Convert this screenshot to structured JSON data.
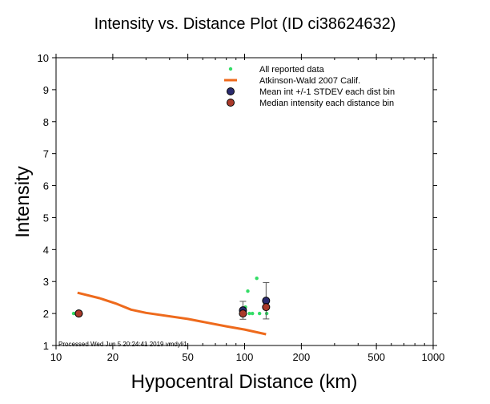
{
  "chart_data": {
    "type": "scatter",
    "title": "Intensity vs. Distance Plot (ID ci38624632)",
    "xlabel": "Hypocentral Distance (km)",
    "ylabel": "Intensity",
    "x_scale": "log",
    "xlim": [
      10,
      1000
    ],
    "ylim": [
      1,
      10
    ],
    "x_ticks": [
      10,
      20,
      50,
      100,
      200,
      500,
      1000
    ],
    "x_tick_labels": [
      "10",
      "20",
      "50",
      "100",
      "200",
      "500",
      "1000"
    ],
    "y_ticks": [
      1,
      2,
      3,
      4,
      5,
      6,
      7,
      8,
      9,
      10
    ],
    "y_tick_labels": [
      "1",
      "2",
      "3",
      "4",
      "5",
      "6",
      "7",
      "8",
      "9",
      "10"
    ],
    "grid": false,
    "legend_position": "top-right",
    "legend": [
      {
        "label": "All reported data",
        "symbol": "dot",
        "color": "#33dd66"
      },
      {
        "label": "Atkinson-Wald 2007 Calif.",
        "symbol": "line",
        "color": "#ee6a1c"
      },
      {
        "label": "Mean int +/-1 STDEV each dist bin",
        "symbol": "circle",
        "color": "#2a2a6e"
      },
      {
        "label": "Median intensity each distance bin",
        "symbol": "circle",
        "color": "#aa3a2a"
      }
    ],
    "series": [
      {
        "name": "All reported data",
        "type": "scatter",
        "color": "#33dd66",
        "points": [
          {
            "x": 12.4,
            "y": 2.0
          },
          {
            "x": 13.0,
            "y": 2.0
          },
          {
            "x": 98,
            "y": 2.1
          },
          {
            "x": 101,
            "y": 2.2
          },
          {
            "x": 104,
            "y": 2.7
          },
          {
            "x": 106,
            "y": 2.0
          },
          {
            "x": 110,
            "y": 2.0
          },
          {
            "x": 116,
            "y": 3.1
          },
          {
            "x": 120,
            "y": 2.0
          },
          {
            "x": 128,
            "y": 2.2
          },
          {
            "x": 131,
            "y": 2.0
          }
        ]
      },
      {
        "name": "Atkinson-Wald 2007 Calif.",
        "type": "line",
        "color": "#ee6a1c",
        "points": [
          {
            "x": 13,
            "y": 2.65
          },
          {
            "x": 17,
            "y": 2.48
          },
          {
            "x": 21,
            "y": 2.3
          },
          {
            "x": 25,
            "y": 2.12
          },
          {
            "x": 30,
            "y": 2.02
          },
          {
            "x": 50,
            "y": 1.83
          },
          {
            "x": 80,
            "y": 1.6
          },
          {
            "x": 100,
            "y": 1.5
          },
          {
            "x": 130,
            "y": 1.35
          }
        ]
      },
      {
        "name": "Mean int +/-1 STDEV each dist bin",
        "type": "errorbar",
        "color": "#2a2a6e",
        "points": [
          {
            "x": 13.2,
            "y": 2.0,
            "err": 0
          },
          {
            "x": 98,
            "y": 2.1,
            "err": 0.28
          },
          {
            "x": 130,
            "y": 2.4,
            "err": 0.57
          }
        ]
      },
      {
        "name": "Median intensity each distance bin",
        "type": "scatter",
        "color": "#aa3a2a",
        "points": [
          {
            "x": 13.2,
            "y": 2.0
          },
          {
            "x": 98,
            "y": 2.0
          },
          {
            "x": 130,
            "y": 2.2
          }
        ]
      }
    ]
  },
  "footer": "Processed Wed Jun  5 20:24:41 2019 vmdyli1"
}
